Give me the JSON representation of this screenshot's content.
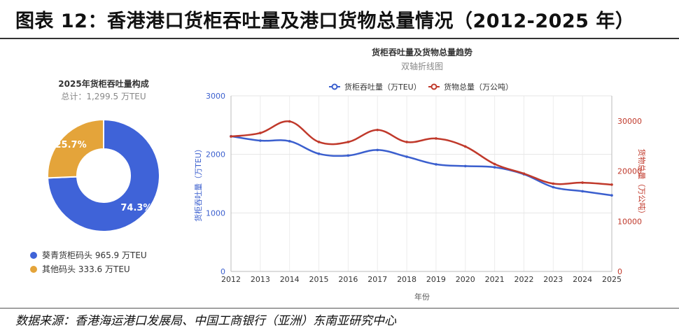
{
  "header": {
    "title": "图表 12：香港港口货柜吞吐量及港口货物总量情况（2012-2025 年）"
  },
  "footer": {
    "source": "数据来源：香港海运港口发展局、中国工商银行（亚洲）东南亚研究中心"
  },
  "chart_data": [
    {
      "type": "pie",
      "title": "2025年货柜吞吐量构成",
      "subtitle": "总计：1,299.5 万TEU",
      "labels": [
        "葵青货柜码头",
        "其他码头"
      ],
      "values": [
        965.9,
        333.6
      ],
      "percent_labels": [
        "74.3%",
        "25.7%"
      ],
      "legend_entries": [
        "葵青货柜码头 965.9 万TEU",
        "其他码头 333.6 万TEU"
      ],
      "colors": [
        "#3f63d8",
        "#e4a43a"
      ],
      "legend": "bottom"
    },
    {
      "type": "line",
      "title": "货柜吞吐量及货物总量趋势",
      "subtitle": "双轴折线图",
      "xlabel": "年份",
      "x": [
        "2012",
        "2013",
        "2014",
        "2015",
        "2016",
        "2017",
        "2018",
        "2019",
        "2020",
        "2021",
        "2022",
        "2023",
        "2024",
        "2025"
      ],
      "series": [
        {
          "name": "货柜吞吐量（万TEU）",
          "axis": "left",
          "color": "#3b5fce",
          "values": [
            2310,
            2235,
            2225,
            2010,
            1980,
            2075,
            1960,
            1830,
            1800,
            1780,
            1660,
            1440,
            1370,
            1300
          ]
        },
        {
          "name": "货物总量（万公吨）",
          "axis": "right",
          "color": "#c0392b",
          "values": [
            26900,
            27600,
            29900,
            25800,
            25800,
            28200,
            25800,
            26500,
            24900,
            21400,
            19500,
            17500,
            17700,
            17300
          ]
        }
      ],
      "ylabel": "货柜吞吐量（万TEU）",
      "ylim": [
        0,
        3000
      ],
      "yticks": [
        "0",
        "1000",
        "2000",
        "3000"
      ],
      "y2label": "货物总量（万公吨）",
      "y2lim": [
        0,
        35000
      ],
      "y2ticks": [
        "0",
        "10000",
        "20000",
        "30000"
      ],
      "grid": true,
      "legend": "top"
    }
  ]
}
